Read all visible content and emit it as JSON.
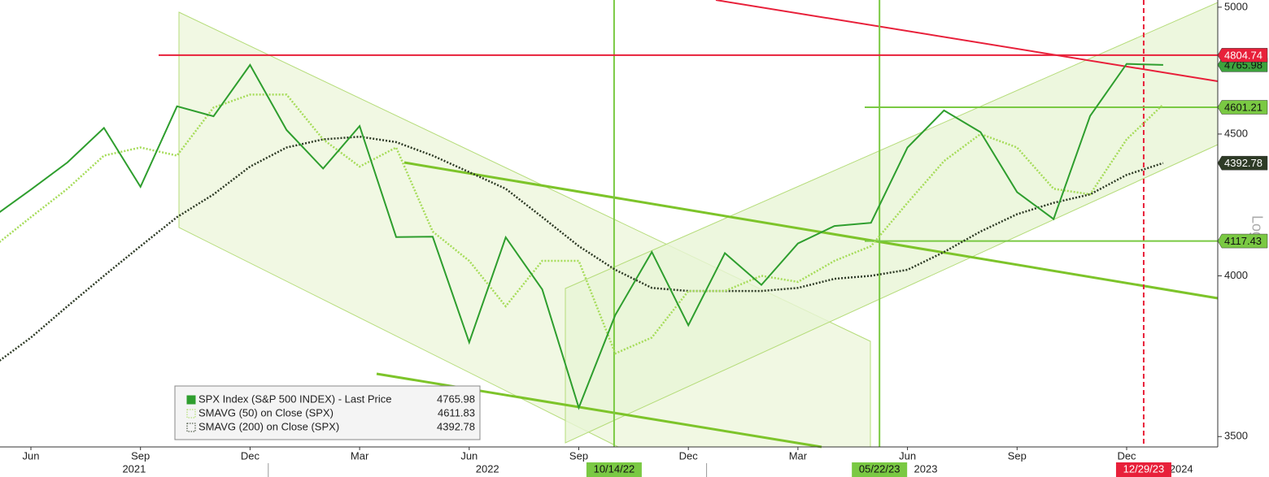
{
  "chart_data": {
    "type": "line",
    "log_scale": true,
    "y_axis_label": "Log",
    "x": [
      "2021-05",
      "2021-06",
      "2021-07",
      "2021-08",
      "2021-09",
      "2021-10",
      "2021-11",
      "2021-12",
      "2022-01",
      "2022-02",
      "2022-03",
      "2022-04",
      "2022-05",
      "2022-06",
      "2022-07",
      "2022-08",
      "2022-09",
      "2022-10",
      "2022-11",
      "2022-12",
      "2023-01",
      "2023-02",
      "2023-03",
      "2023-04",
      "2023-05",
      "2023-06",
      "2023-07",
      "2023-08",
      "2023-09",
      "2023-10",
      "2023-11",
      "2023-12",
      "2024-01"
    ],
    "series": [
      {
        "name": "SPX Index (S&P 500 INDEX) - Last Price",
        "last": 4765.98,
        "color": "#2e9e2e",
        "tag_color": "#3da23d",
        "style": "solid",
        "values": [
          4204,
          4297,
          4395,
          4523,
          4307,
          4605,
          4567,
          4766,
          4515,
          4373,
          4530,
          4131,
          4132,
          3785,
          4130,
          3955,
          3585,
          3872,
          4080,
          3839,
          4076,
          3970,
          4109,
          4169,
          4180,
          4450,
          4589,
          4507,
          4288,
          4193,
          4568,
          4770,
          4766
        ]
      },
      {
        "name": "SMAVG (50)  on Close (SPX)",
        "last": 4611.83,
        "color": "#a6dc5a",
        "style": "dotted",
        "values": [
          4100,
          4200,
          4300,
          4420,
          4450,
          4420,
          4600,
          4650,
          4650,
          4480,
          4380,
          4450,
          4150,
          4050,
          3900,
          4050,
          4050,
          3750,
          3800,
          3950,
          3950,
          4000,
          3980,
          4050,
          4100,
          4250,
          4400,
          4500,
          4450,
          4300,
          4280,
          4480,
          4611.83
        ]
      },
      {
        "name": "SMAVG (200)  on Close (SPX)",
        "last": 4392.78,
        "color": "#2e3b26",
        "tag_color": "#2e3b26",
        "style": "dotted",
        "values": [
          3716,
          3800,
          3900,
          4000,
          4100,
          4200,
          4280,
          4380,
          4450,
          4480,
          4490,
          4470,
          4420,
          4360,
          4300,
          4200,
          4100,
          4020,
          3960,
          3950,
          3950,
          3950,
          3960,
          3990,
          4000,
          4020,
          4080,
          4150,
          4210,
          4250,
          4280,
          4350,
          4392.78
        ]
      }
    ],
    "ylim": [
      3470,
      5030
    ],
    "yticks": [
      3500,
      4000,
      4500,
      5000
    ],
    "xticks": [
      {
        "value": "2021-06",
        "label": "Jun"
      },
      {
        "value": "2021-09",
        "label": "Sep"
      },
      {
        "value": "2021-12",
        "label": "Dec"
      },
      {
        "value": "2022-03",
        "label": "Mar"
      },
      {
        "value": "2022-06",
        "label": "Jun"
      },
      {
        "value": "2022-09",
        "label": "Sep"
      },
      {
        "value": "2022-12",
        "label": "Dec"
      },
      {
        "value": "2023-03",
        "label": "Mar"
      },
      {
        "value": "2023-06",
        "label": "Jun"
      },
      {
        "value": "2023-09",
        "label": "Sep"
      },
      {
        "value": "2023-12",
        "label": "Dec"
      }
    ],
    "years": [
      "2021",
      "2022",
      "2023",
      "2024"
    ],
    "price_levels": [
      {
        "value": 4804.74,
        "color": "#e8203a"
      },
      {
        "value": 4601.21,
        "color": "#7ac943"
      },
      {
        "value": 4117.43,
        "color": "#7ac943"
      }
    ],
    "date_markers": [
      {
        "label": "10/14/22",
        "color": "#7ac943"
      },
      {
        "label": "05/22/23",
        "color": "#7ac943"
      },
      {
        "label": "12/29/23",
        "color": "#e8203a"
      }
    ]
  }
}
